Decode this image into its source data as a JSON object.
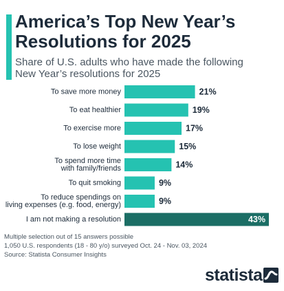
{
  "header": {
    "title_line1": "America’s Top New Year’s",
    "title_line2": "Resolutions for 2025",
    "subtitle_line1": "Share of U.S. adults who have made the following",
    "subtitle_line2": "New Year’s resolutions for 2025"
  },
  "chart_data": {
    "type": "bar",
    "orientation": "horizontal",
    "title": "America’s Top New Year’s Resolutions for 2025",
    "subtitle": "Share of U.S. adults who have made the following New Year’s resolutions for 2025",
    "categories": [
      [
        "To save more money"
      ],
      [
        "To eat healthier"
      ],
      [
        "To exercise more"
      ],
      [
        "To lose weight"
      ],
      [
        "To spend more time",
        "with family/friends"
      ],
      [
        "To quit smoking"
      ],
      [
        "To reduce spendings on",
        "living expenses (e.g. food, energy)"
      ],
      [
        "I am not making a resolution"
      ]
    ],
    "values": [
      21,
      19,
      17,
      15,
      14,
      9,
      9,
      43
    ],
    "value_labels": [
      "21%",
      "19%",
      "17%",
      "15%",
      "14%",
      "9%",
      "9%",
      "43%"
    ],
    "xlim": [
      0,
      43
    ],
    "colors": [
      "#25c2b1",
      "#25c2b1",
      "#25c2b1",
      "#25c2b1",
      "#25c2b1",
      "#25c2b1",
      "#25c2b1",
      "#1b6e65"
    ],
    "grid": false,
    "legend": "none"
  },
  "footer": {
    "note1": "Multiple selection out of 15 answers possible",
    "note2": "1,050 U.S. respondents (18 - 80 y/o) surveyed Oct. 24 - Nov. 03, 2024",
    "source": "Source: Statista Consumer Insights"
  },
  "brand": {
    "logo_text": "statista",
    "logo_icon": "statista-wave-icon",
    "text_color": "#1d2b3a",
    "accent_color": "#25c2b1"
  }
}
